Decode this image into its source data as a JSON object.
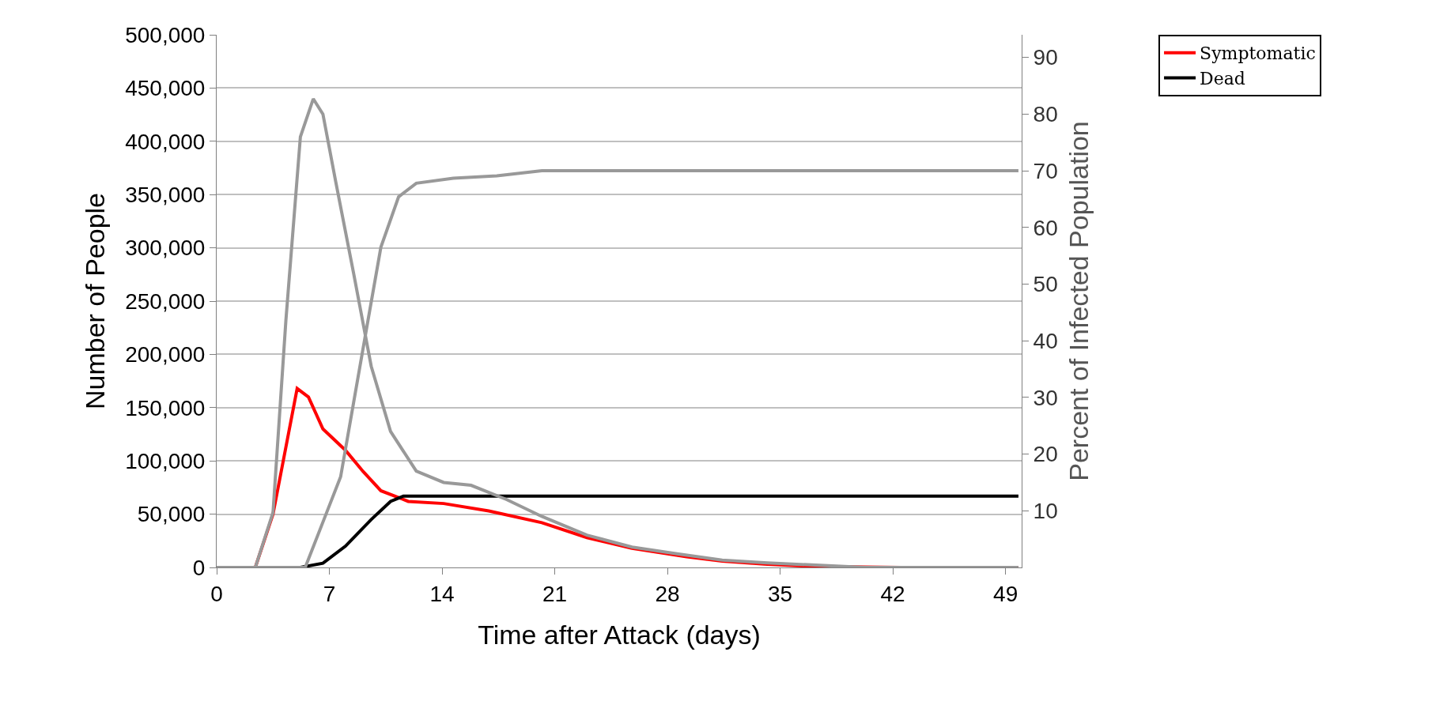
{
  "chart_data": {
    "type": "line",
    "xlabel": "Time after Attack (days)",
    "ylabel": "Number of People",
    "y2label": "Percent of Infected Population",
    "xlim": [
      0,
      50
    ],
    "xticks": [
      0,
      7,
      14,
      21,
      28,
      35,
      42,
      49
    ],
    "ylim": [
      0,
      500000
    ],
    "yticks": [
      0,
      {
        "value": 50000,
        "label": "50,000"
      },
      {
        "value": 100000,
        "label": "100,000"
      },
      {
        "value": 150000,
        "label": "150,000"
      },
      {
        "value": 200000,
        "label": "200,000"
      },
      {
        "value": 250000,
        "label": "250,000"
      },
      {
        "value": 300000,
        "label": "300,000"
      },
      {
        "value": 350000,
        "label": "350,000"
      },
      {
        "value": 400000,
        "label": "400,000"
      },
      {
        "value": 450000,
        "label": "450,000"
      },
      {
        "value": 500000,
        "label": "500,000"
      }
    ],
    "y2lim": [
      0,
      94
    ],
    "y2ticks": [
      10,
      20,
      30,
      40,
      50,
      60,
      70,
      80,
      90
    ],
    "grid": "y",
    "legend": "top right",
    "line_style": "solid",
    "marker": "none",
    "series": [
      {
        "color": "#999999",
        "axis": "y2",
        "x": [
          0,
          2.4,
          3.5,
          4.3,
          5.2,
          6.0,
          6.6,
          7.4,
          8.5,
          9.6,
          10.8,
          12.4,
          14.1,
          15.8,
          18,
          20.2,
          23,
          25.8,
          28.6,
          31.4,
          34.2,
          40.3,
          49.8
        ],
        "values": [
          0,
          0,
          9.7,
          43.6,
          76,
          82.7,
          80,
          68,
          52,
          35.5,
          24,
          17,
          15,
          14.5,
          12,
          9,
          5.7,
          3.6,
          2.4,
          1.3,
          0.8,
          0,
          0
        ]
      },
      {
        "color": "#999999",
        "axis": "y2",
        "x": [
          0,
          5.5,
          6.6,
          7.7,
          8.5,
          9.4,
          10.2,
          11.3,
          12.4,
          14.7,
          17.4,
          20.2,
          49.8
        ],
        "values": [
          0,
          0,
          8,
          16,
          29,
          43.6,
          56.5,
          65.4,
          67.8,
          68.7,
          69.1,
          70,
          70
        ]
      },
      {
        "name": "Symptomatic",
        "color": "#ff0000",
        "x": [
          0,
          2.4,
          3.5,
          5.0,
          5.7,
          6.6,
          8,
          9.1,
          10.2,
          11.9,
          14.1,
          16.9,
          20.2,
          23,
          25.8,
          29.2,
          31.4,
          34.2,
          37,
          42.5,
          49.8
        ],
        "values": [
          0,
          0,
          50000,
          168000,
          160000,
          130000,
          110000,
          90000,
          72000,
          62000,
          60000,
          53000,
          42000,
          28000,
          18000,
          10000,
          6000,
          3000,
          1000,
          0,
          0
        ]
      },
      {
        "name": "Dead",
        "color": "#000000",
        "x": [
          0,
          5.2,
          6.6,
          8,
          9.6,
          10.8,
          11.6,
          49.8
        ],
        "values": [
          0,
          0,
          4000,
          20000,
          45000,
          62000,
          67000,
          67000
        ]
      }
    ]
  }
}
